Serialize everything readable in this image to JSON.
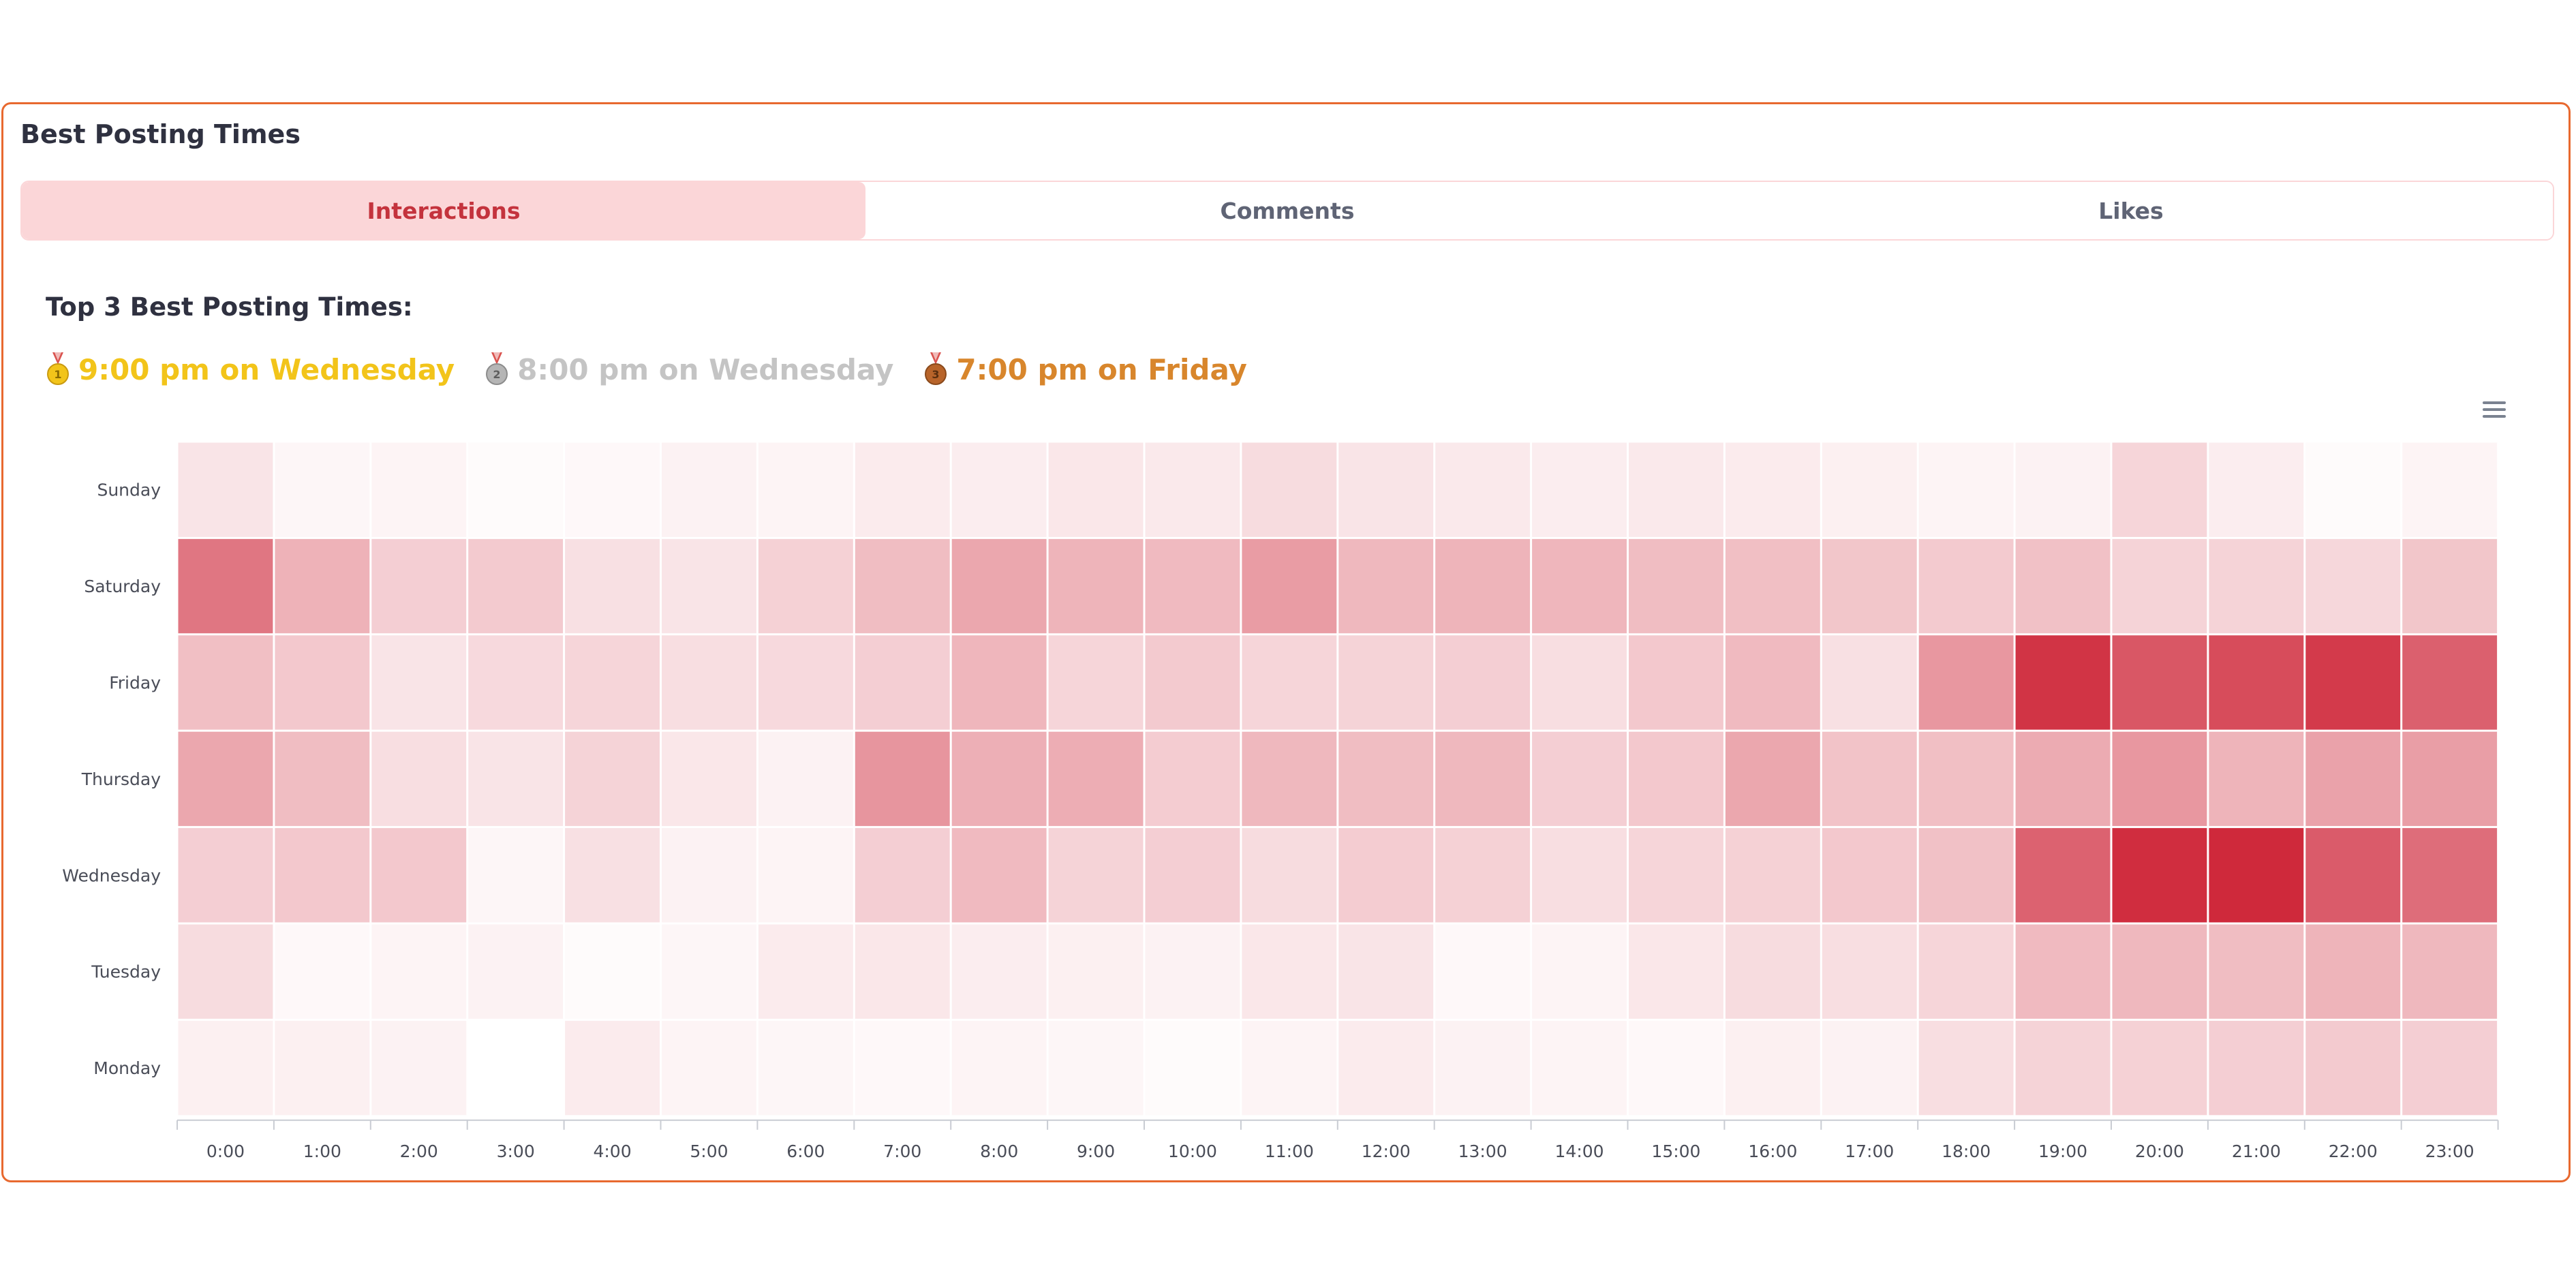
{
  "card": {
    "title": "Best Posting Times"
  },
  "tabs": [
    {
      "label": "Interactions",
      "active": true
    },
    {
      "label": "Comments",
      "active": false
    },
    {
      "label": "Likes",
      "active": false
    }
  ],
  "top3": {
    "heading": "Top 3 Best Posting Times:",
    "items": [
      {
        "text": "9:00 pm on Wednesday",
        "medal": "gold-medal-icon",
        "color": "#f2c41a"
      },
      {
        "text": "8:00 pm on Wednesday",
        "medal": "silver-medal-icon",
        "color": "#c4c4c4"
      },
      {
        "text": "7:00 pm on Friday",
        "medal": "bronze-medal-icon",
        "color": "#d8862c"
      }
    ]
  },
  "colors": {
    "accent_border": "#e8692f",
    "heat_max": "#cd2235",
    "tab_active_bg": "#fbd6d8"
  },
  "chart_data": {
    "type": "heatmap",
    "title": "",
    "x_categories": [
      "0:00",
      "1:00",
      "2:00",
      "3:00",
      "4:00",
      "5:00",
      "6:00",
      "7:00",
      "8:00",
      "9:00",
      "10:00",
      "11:00",
      "12:00",
      "13:00",
      "14:00",
      "15:00",
      "16:00",
      "17:00",
      "18:00",
      "19:00",
      "20:00",
      "21:00",
      "22:00",
      "23:00"
    ],
    "y_categories": [
      "Sunday",
      "Saturday",
      "Friday",
      "Thursday",
      "Wednesday",
      "Tuesday",
      "Monday"
    ],
    "value_scale": [
      0,
      1
    ],
    "values": [
      [
        0.12,
        0.04,
        0.05,
        0.02,
        0.03,
        0.06,
        0.05,
        0.09,
        0.08,
        0.11,
        0.1,
        0.16,
        0.12,
        0.1,
        0.08,
        0.1,
        0.09,
        0.07,
        0.05,
        0.06,
        0.19,
        0.08,
        0.02,
        0.05
      ],
      [
        0.62,
        0.35,
        0.22,
        0.24,
        0.14,
        0.12,
        0.21,
        0.3,
        0.4,
        0.34,
        0.31,
        0.45,
        0.32,
        0.34,
        0.33,
        0.3,
        0.29,
        0.26,
        0.24,
        0.28,
        0.2,
        0.2,
        0.18,
        0.26
      ],
      [
        0.29,
        0.25,
        0.12,
        0.17,
        0.19,
        0.15,
        0.17,
        0.22,
        0.33,
        0.19,
        0.24,
        0.19,
        0.2,
        0.22,
        0.15,
        0.25,
        0.31,
        0.14,
        0.47,
        0.92,
        0.76,
        0.81,
        0.89,
        0.72
      ],
      [
        0.4,
        0.3,
        0.15,
        0.12,
        0.2,
        0.11,
        0.06,
        0.48,
        0.36,
        0.37,
        0.23,
        0.32,
        0.3,
        0.32,
        0.22,
        0.25,
        0.4,
        0.27,
        0.29,
        0.38,
        0.47,
        0.34,
        0.42,
        0.44
      ],
      [
        0.22,
        0.25,
        0.25,
        0.04,
        0.14,
        0.06,
        0.05,
        0.22,
        0.31,
        0.2,
        0.22,
        0.16,
        0.23,
        0.21,
        0.15,
        0.19,
        0.21,
        0.25,
        0.28,
        0.71,
        0.95,
        0.97,
        0.74,
        0.66
      ],
      [
        0.16,
        0.03,
        0.05,
        0.06,
        0.02,
        0.04,
        0.09,
        0.11,
        0.08,
        0.07,
        0.06,
        0.11,
        0.12,
        0.03,
        0.05,
        0.11,
        0.16,
        0.15,
        0.19,
        0.31,
        0.32,
        0.3,
        0.34,
        0.32
      ],
      [
        0.07,
        0.07,
        0.06,
        0.0,
        0.09,
        0.05,
        0.04,
        0.03,
        0.05,
        0.04,
        0.02,
        0.05,
        0.09,
        0.06,
        0.05,
        0.03,
        0.07,
        0.06,
        0.15,
        0.2,
        0.21,
        0.22,
        0.24,
        0.22
      ]
    ]
  }
}
